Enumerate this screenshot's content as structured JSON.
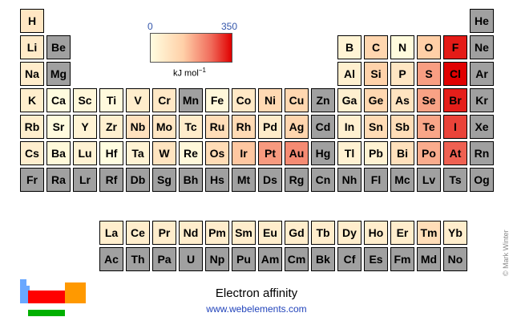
{
  "scale": {
    "min": "0",
    "max": "350",
    "unit": "kJ mol",
    "unit_exp": "−1"
  },
  "caption": "Electron affinity",
  "website": "www.webelements.com",
  "copyright": "© Mark Winter",
  "colors": {
    "none": "#a0a0a0",
    "scale_low": "#fffde0",
    "scale_high": "#e00000"
  },
  "elements": [
    {
      "s": "H",
      "r": 0,
      "c": 0,
      "ea": 73
    },
    {
      "s": "He",
      "r": 0,
      "c": 17,
      "ea": null
    },
    {
      "s": "Li",
      "r": 1,
      "c": 0,
      "ea": 60
    },
    {
      "s": "Be",
      "r": 1,
      "c": 1,
      "ea": null
    },
    {
      "s": "B",
      "r": 1,
      "c": 12,
      "ea": 27
    },
    {
      "s": "C",
      "r": 1,
      "c": 13,
      "ea": 122
    },
    {
      "s": "N",
      "r": 1,
      "c": 14,
      "ea": 7
    },
    {
      "s": "O",
      "r": 1,
      "c": 15,
      "ea": 141
    },
    {
      "s": "F",
      "r": 1,
      "c": 16,
      "ea": 328
    },
    {
      "s": "Ne",
      "r": 1,
      "c": 17,
      "ea": null
    },
    {
      "s": "Na",
      "r": 2,
      "c": 0,
      "ea": 53
    },
    {
      "s": "Mg",
      "r": 2,
      "c": 1,
      "ea": null
    },
    {
      "s": "Al",
      "r": 2,
      "c": 12,
      "ea": 42
    },
    {
      "s": "Si",
      "r": 2,
      "c": 13,
      "ea": 134
    },
    {
      "s": "P",
      "r": 2,
      "c": 14,
      "ea": 72
    },
    {
      "s": "S",
      "r": 2,
      "c": 15,
      "ea": 200
    },
    {
      "s": "Cl",
      "r": 2,
      "c": 16,
      "ea": 349
    },
    {
      "s": "Ar",
      "r": 2,
      "c": 17,
      "ea": null
    },
    {
      "s": "K",
      "r": 3,
      "c": 0,
      "ea": 48
    },
    {
      "s": "Ca",
      "r": 3,
      "c": 1,
      "ea": 2
    },
    {
      "s": "Sc",
      "r": 3,
      "c": 2,
      "ea": 18
    },
    {
      "s": "Ti",
      "r": 3,
      "c": 3,
      "ea": 8
    },
    {
      "s": "V",
      "r": 3,
      "c": 4,
      "ea": 51
    },
    {
      "s": "Cr",
      "r": 3,
      "c": 5,
      "ea": 65
    },
    {
      "s": "Mn",
      "r": 3,
      "c": 6,
      "ea": null
    },
    {
      "s": "Fe",
      "r": 3,
      "c": 7,
      "ea": 15
    },
    {
      "s": "Co",
      "r": 3,
      "c": 8,
      "ea": 64
    },
    {
      "s": "Ni",
      "r": 3,
      "c": 9,
      "ea": 112
    },
    {
      "s": "Cu",
      "r": 3,
      "c": 10,
      "ea": 119
    },
    {
      "s": "Zn",
      "r": 3,
      "c": 11,
      "ea": null
    },
    {
      "s": "Ga",
      "r": 3,
      "c": 12,
      "ea": 41
    },
    {
      "s": "Ge",
      "r": 3,
      "c": 13,
      "ea": 119
    },
    {
      "s": "As",
      "r": 3,
      "c": 14,
      "ea": 79
    },
    {
      "s": "Se",
      "r": 3,
      "c": 15,
      "ea": 195
    },
    {
      "s": "Br",
      "r": 3,
      "c": 16,
      "ea": 325
    },
    {
      "s": "Kr",
      "r": 3,
      "c": 17,
      "ea": null
    },
    {
      "s": "Rb",
      "r": 4,
      "c": 0,
      "ea": 47
    },
    {
      "s": "Sr",
      "r": 4,
      "c": 1,
      "ea": 5
    },
    {
      "s": "Y",
      "r": 4,
      "c": 2,
      "ea": 30
    },
    {
      "s": "Zr",
      "r": 4,
      "c": 3,
      "ea": 41
    },
    {
      "s": "Nb",
      "r": 4,
      "c": 4,
      "ea": 86
    },
    {
      "s": "Mo",
      "r": 4,
      "c": 5,
      "ea": 72
    },
    {
      "s": "Tc",
      "r": 4,
      "c": 6,
      "ea": 53
    },
    {
      "s": "Ru",
      "r": 4,
      "c": 7,
      "ea": 101
    },
    {
      "s": "Rh",
      "r": 4,
      "c": 8,
      "ea": 110
    },
    {
      "s": "Pd",
      "r": 4,
      "c": 9,
      "ea": 54
    },
    {
      "s": "Ag",
      "r": 4,
      "c": 10,
      "ea": 126
    },
    {
      "s": "Cd",
      "r": 4,
      "c": 11,
      "ea": null
    },
    {
      "s": "In",
      "r": 4,
      "c": 12,
      "ea": 39
    },
    {
      "s": "Sn",
      "r": 4,
      "c": 13,
      "ea": 107
    },
    {
      "s": "Sb",
      "r": 4,
      "c": 14,
      "ea": 101
    },
    {
      "s": "Te",
      "r": 4,
      "c": 15,
      "ea": 190
    },
    {
      "s": "I",
      "r": 4,
      "c": 16,
      "ea": 295
    },
    {
      "s": "Xe",
      "r": 4,
      "c": 17,
      "ea": null
    },
    {
      "s": "Cs",
      "r": 5,
      "c": 0,
      "ea": 46
    },
    {
      "s": "Ba",
      "r": 5,
      "c": 1,
      "ea": 14
    },
    {
      "s": "Lu",
      "r": 5,
      "c": 2,
      "ea": 33
    },
    {
      "s": "Hf",
      "r": 5,
      "c": 3,
      "ea": 0
    },
    {
      "s": "Ta",
      "r": 5,
      "c": 4,
      "ea": 31
    },
    {
      "s": "W",
      "r": 5,
      "c": 5,
      "ea": 79
    },
    {
      "s": "Re",
      "r": 5,
      "c": 6,
      "ea": 15
    },
    {
      "s": "Os",
      "r": 5,
      "c": 7,
      "ea": 104
    },
    {
      "s": "Ir",
      "r": 5,
      "c": 8,
      "ea": 151
    },
    {
      "s": "Pt",
      "r": 5,
      "c": 9,
      "ea": 205
    },
    {
      "s": "Au",
      "r": 5,
      "c": 10,
      "ea": 223
    },
    {
      "s": "Hg",
      "r": 5,
      "c": 11,
      "ea": null
    },
    {
      "s": "Tl",
      "r": 5,
      "c": 12,
      "ea": 36
    },
    {
      "s": "Pb",
      "r": 5,
      "c": 13,
      "ea": 35
    },
    {
      "s": "Bi",
      "r": 5,
      "c": 14,
      "ea": 91
    },
    {
      "s": "Po",
      "r": 5,
      "c": 15,
      "ea": 183
    },
    {
      "s": "At",
      "r": 5,
      "c": 16,
      "ea": 270
    },
    {
      "s": "Rn",
      "r": 5,
      "c": 17,
      "ea": null
    },
    {
      "s": "Fr",
      "r": 6,
      "c": 0,
      "ea": null
    },
    {
      "s": "Ra",
      "r": 6,
      "c": 1,
      "ea": null
    },
    {
      "s": "Lr",
      "r": 6,
      "c": 2,
      "ea": null
    },
    {
      "s": "Rf",
      "r": 6,
      "c": 3,
      "ea": null
    },
    {
      "s": "Db",
      "r": 6,
      "c": 4,
      "ea": null
    },
    {
      "s": "Sg",
      "r": 6,
      "c": 5,
      "ea": null
    },
    {
      "s": "Bh",
      "r": 6,
      "c": 6,
      "ea": null
    },
    {
      "s": "Hs",
      "r": 6,
      "c": 7,
      "ea": null
    },
    {
      "s": "Mt",
      "r": 6,
      "c": 8,
      "ea": null
    },
    {
      "s": "Ds",
      "r": 6,
      "c": 9,
      "ea": null
    },
    {
      "s": "Rg",
      "r": 6,
      "c": 10,
      "ea": null
    },
    {
      "s": "Cn",
      "r": 6,
      "c": 11,
      "ea": null
    },
    {
      "s": "Nh",
      "r": 6,
      "c": 12,
      "ea": null
    },
    {
      "s": "Fl",
      "r": 6,
      "c": 13,
      "ea": null
    },
    {
      "s": "Mc",
      "r": 6,
      "c": 14,
      "ea": null
    },
    {
      "s": "Lv",
      "r": 6,
      "c": 15,
      "ea": null
    },
    {
      "s": "Ts",
      "r": 6,
      "c": 16,
      "ea": null
    },
    {
      "s": "Og",
      "r": 6,
      "c": 17,
      "ea": null
    },
    {
      "s": "La",
      "r": 8,
      "c": 3,
      "ea": 48
    },
    {
      "s": "Ce",
      "r": 8,
      "c": 4,
      "ea": 50
    },
    {
      "s": "Pr",
      "r": 8,
      "c": 5,
      "ea": 50
    },
    {
      "s": "Nd",
      "r": 8,
      "c": 6,
      "ea": 50
    },
    {
      "s": "Pm",
      "r": 8,
      "c": 7,
      "ea": 50
    },
    {
      "s": "Sm",
      "r": 8,
      "c": 8,
      "ea": 50
    },
    {
      "s": "Eu",
      "r": 8,
      "c": 9,
      "ea": 50
    },
    {
      "s": "Gd",
      "r": 8,
      "c": 10,
      "ea": 50
    },
    {
      "s": "Tb",
      "r": 8,
      "c": 11,
      "ea": 50
    },
    {
      "s": "Dy",
      "r": 8,
      "c": 12,
      "ea": 50
    },
    {
      "s": "Ho",
      "r": 8,
      "c": 13,
      "ea": 50
    },
    {
      "s": "Er",
      "r": 8,
      "c": 14,
      "ea": 50
    },
    {
      "s": "Tm",
      "r": 8,
      "c": 15,
      "ea": 99
    },
    {
      "s": "Yb",
      "r": 8,
      "c": 16,
      "ea": 50
    },
    {
      "s": "Ac",
      "r": 9,
      "c": 3,
      "ea": null
    },
    {
      "s": "Th",
      "r": 9,
      "c": 4,
      "ea": null
    },
    {
      "s": "Pa",
      "r": 9,
      "c": 5,
      "ea": null
    },
    {
      "s": "U",
      "r": 9,
      "c": 6,
      "ea": null
    },
    {
      "s": "Np",
      "r": 9,
      "c": 7,
      "ea": null
    },
    {
      "s": "Pu",
      "r": 9,
      "c": 8,
      "ea": null
    },
    {
      "s": "Am",
      "r": 9,
      "c": 9,
      "ea": null
    },
    {
      "s": "Cm",
      "r": 9,
      "c": 10,
      "ea": null
    },
    {
      "s": "Bk",
      "r": 9,
      "c": 11,
      "ea": null
    },
    {
      "s": "Cf",
      "r": 9,
      "c": 12,
      "ea": null
    },
    {
      "s": "Es",
      "r": 9,
      "c": 13,
      "ea": null
    },
    {
      "s": "Fm",
      "r": 9,
      "c": 14,
      "ea": null
    },
    {
      "s": "Md",
      "r": 9,
      "c": 15,
      "ea": null
    },
    {
      "s": "No",
      "r": 9,
      "c": 16,
      "ea": null
    }
  ]
}
